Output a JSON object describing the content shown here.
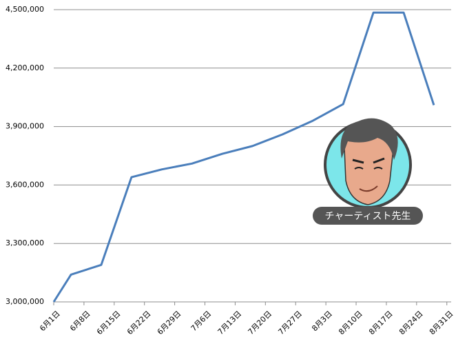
{
  "chart_data": {
    "type": "line",
    "x": [
      0,
      4,
      11,
      18,
      25,
      32,
      39,
      46,
      53,
      60,
      67,
      74,
      81,
      88
    ],
    "series": [
      {
        "color": "#4a7ebb",
        "values": [
          3000000,
          3140000,
          3190000,
          3640000,
          3680000,
          3710000,
          3760000,
          3800000,
          3860000,
          3930000,
          4015000,
          4485000,
          4485000,
          4010000
        ]
      }
    ],
    "xlim": [
      0,
      92
    ],
    "xticks": [
      {
        "value": 0,
        "label": "6月1日"
      },
      {
        "value": 7,
        "label": "6月8日"
      },
      {
        "value": 14,
        "label": "6月15日"
      },
      {
        "value": 21,
        "label": "6月22日"
      },
      {
        "value": 28,
        "label": "6月29日"
      },
      {
        "value": 35,
        "label": "7月6日"
      },
      {
        "value": 42,
        "label": "7月13日"
      },
      {
        "value": 49,
        "label": "7月20日"
      },
      {
        "value": 56,
        "label": "7月27日"
      },
      {
        "value": 63,
        "label": "8月3日"
      },
      {
        "value": 70,
        "label": "8月10日"
      },
      {
        "value": 77,
        "label": "8月17日"
      },
      {
        "value": 84,
        "label": "8月24日"
      },
      {
        "value": 91,
        "label": "8月31日"
      }
    ],
    "ylim": [
      3000000,
      4500000
    ],
    "yticks": [
      {
        "value": 3000000,
        "label": "3,000,000"
      },
      {
        "value": 3300000,
        "label": "3,300,000"
      },
      {
        "value": 3600000,
        "label": "3,600,000"
      },
      {
        "value": 3900000,
        "label": "3,900,000"
      },
      {
        "value": 4200000,
        "label": "4,200,000"
      },
      {
        "value": 4500000,
        "label": "4,500,000"
      }
    ],
    "grid": true
  },
  "badge": {
    "label": "チャーティスト先生"
  }
}
